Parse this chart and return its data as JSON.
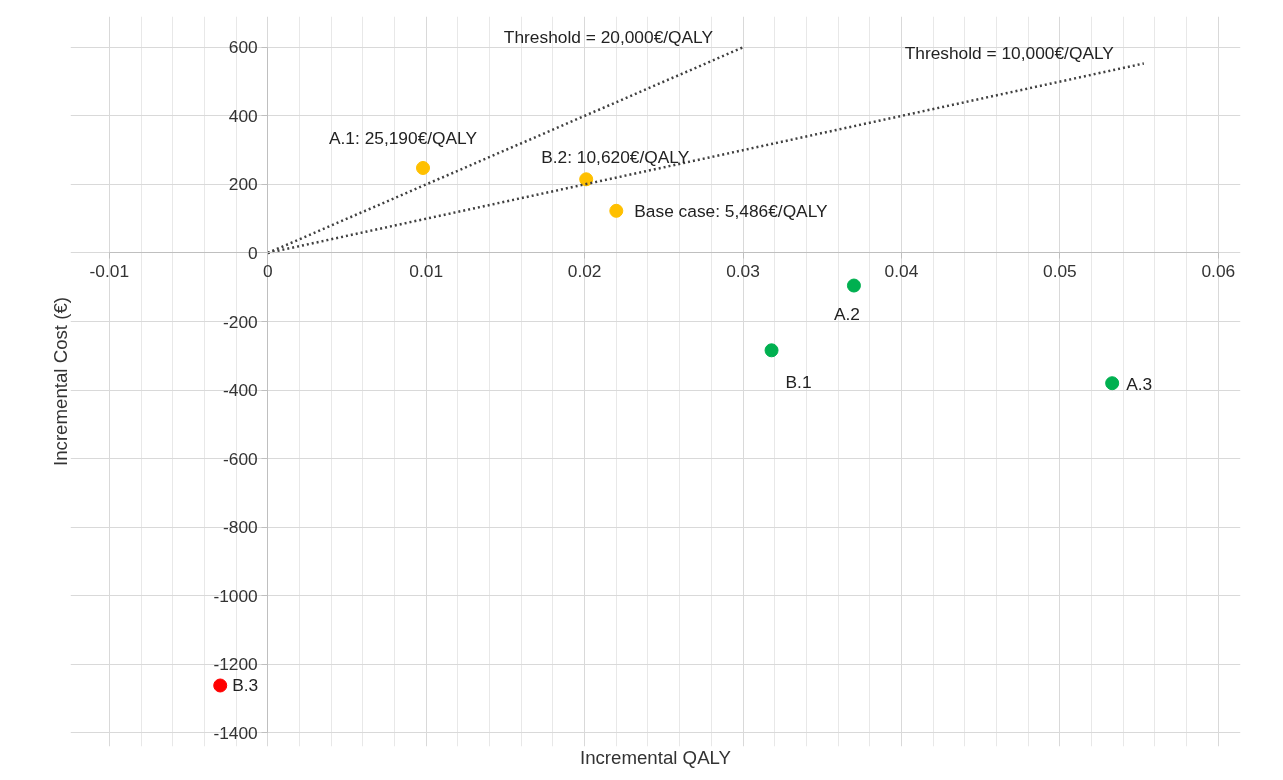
{
  "chart_data": {
    "type": "scatter",
    "xlabel": "Incremental QALY",
    "ylabel": "Incremental Cost (€)",
    "xlim": [
      -0.01,
      0.06
    ],
    "ylim": [
      -1400,
      600
    ],
    "xticks": [
      -0.01,
      0,
      0.01,
      0.02,
      0.03,
      0.04,
      0.05,
      0.06
    ],
    "yticks": [
      -1400,
      -1200,
      -1000,
      -800,
      -600,
      -400,
      -200,
      0,
      200,
      400,
      600
    ],
    "grid": true,
    "marker": "circle",
    "series": [
      {
        "color": "#ffc000",
        "x": [
          0.0098,
          0.0201,
          0.022
        ],
        "values": [
          248,
          215,
          123
        ]
      },
      {
        "color": "#00b050",
        "x": [
          0.037,
          0.0318,
          0.0533
        ],
        "values": [
          -95,
          -284,
          -380
        ]
      },
      {
        "color": "#ff0000",
        "x": [
          -0.003
        ],
        "values": [
          -1262
        ]
      },
      {
        "type": "line",
        "name": "Threshold = 20,000€/QALY",
        "color": "#404040",
        "line_style": "dotted",
        "marker": "none",
        "x": [
          0,
          0.03
        ],
        "values": [
          0,
          600
        ]
      },
      {
        "type": "line",
        "name": "Threshold = 10,000€/QALY",
        "color": "#404040",
        "line_style": "dotted",
        "marker": "none",
        "x": [
          0,
          0.0553
        ],
        "values": [
          0,
          553
        ]
      }
    ],
    "annotations": [
      {
        "text": "A.1: 25,190€/QALY",
        "x": 0.0098,
        "y": 248
      },
      {
        "text": "B.2: 10,620€/QALY",
        "x": 0.0201,
        "y": 215
      },
      {
        "text": "Base case: 5,486€/QALY",
        "x": 0.022,
        "y": 123
      },
      {
        "text": "A.2",
        "x": 0.037,
        "y": -95
      },
      {
        "text": "B.1",
        "x": 0.0318,
        "y": -284
      },
      {
        "text": "A.3",
        "x": 0.0533,
        "y": -380
      },
      {
        "text": "B.3",
        "x": -0.003,
        "y": -1262
      }
    ]
  }
}
